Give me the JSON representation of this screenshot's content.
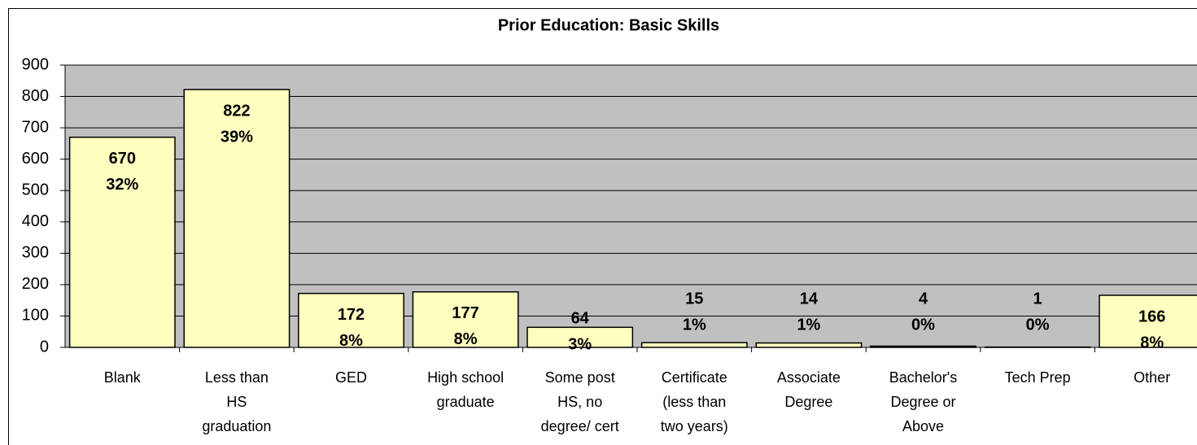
{
  "chart_data": {
    "type": "bar",
    "title": "Prior Education: Basic Skills",
    "categories": [
      "Blank",
      "Less than HS graduation",
      "GED",
      "High school graduate",
      "Some post HS, no degree/ cert",
      "Certificate (less than two years)",
      "Associate Degree",
      "Bachelor's Degree or Above",
      "Tech Prep",
      "Other"
    ],
    "values": [
      670,
      822,
      172,
      177,
      64,
      15,
      14,
      4,
      1,
      166
    ],
    "percent_labels": [
      "32%",
      "39%",
      "8%",
      "8%",
      "3%",
      "1%",
      "1%",
      "0%",
      "0%",
      "8%"
    ],
    "color": "#ffffc0",
    "ylim": [
      0,
      900
    ],
    "yticks": [
      0,
      100,
      200,
      300,
      400,
      500,
      600,
      700,
      800,
      900
    ],
    "grid": true
  }
}
